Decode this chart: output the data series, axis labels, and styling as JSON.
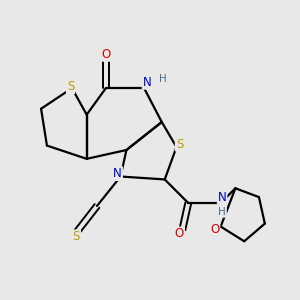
{
  "bg_color": "#e8e8e8",
  "atom_colors": {
    "S": "#b8a000",
    "N": "#0000cc",
    "O": "#dd0000",
    "C": "#000000",
    "H": "#4a7090"
  },
  "bond_color": "#000000",
  "bond_width": 1.6,
  "title": ""
}
